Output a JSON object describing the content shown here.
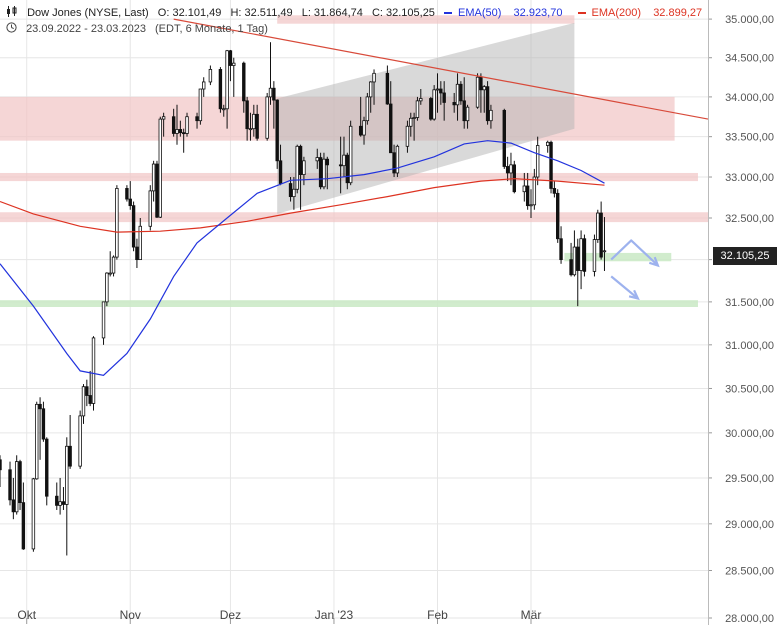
{
  "header": {
    "instrument": "Dow Jones (NYSE, Last)",
    "open": "O: 32.101,49",
    "high": "H: 32.511,49",
    "low": "L: 31.864,74",
    "close": "C: 32.105,25",
    "date_range": "23.09.2022 - 23.03.2023",
    "meta": "(EDT, 6 Monate, 1 Tag)",
    "ema50_label": "EMA(50)",
    "ema50_value": "32.923,70",
    "ema200_label": "EMA(200)",
    "ema200_value": "32.899,27"
  },
  "last_price_label": "32.105,25",
  "colors": {
    "ema50": "#2233dd",
    "ema200": "#dd3322",
    "trendline": "#d84a3a",
    "resistance_zone": "#f1c4c4",
    "support_zone": "#c9e9c4",
    "channel": "#b4b4b4",
    "arrow": "#9db2ee",
    "candle": "#111111"
  },
  "icons": [
    "candlestick-icon",
    "clock-icon"
  ],
  "chart_data": {
    "type": "candlestick",
    "y_scale": "log",
    "ylim": [
      28000,
      35250
    ],
    "y_ticks": [
      "35.000,00",
      "34.500,00",
      "34.000,00",
      "33.500,00",
      "33.000,00",
      "32.500,00",
      "32.000,00",
      "31.500,00",
      "31.000,00",
      "30.500,00",
      "30.000,00",
      "29.500,00",
      "29.000,00",
      "28.500,00",
      "28.000,00"
    ],
    "y_tick_values": [
      35000,
      34500,
      34000,
      33500,
      33000,
      32500,
      32000,
      31500,
      31000,
      30500,
      30000,
      29500,
      29000,
      28500,
      28000
    ],
    "x_labels": [
      "Okt",
      "Nov",
      "Dez",
      "Jan '23",
      "Feb",
      "Mär"
    ],
    "x_label_dates": [
      "2022-10-01",
      "2022-11-01",
      "2022-12-01",
      "2023-01-01",
      "2023-02-01",
      "2023-03-01"
    ],
    "x_range": [
      "2022-09-23",
      "2023-04-23"
    ],
    "grid": true,
    "candles": [
      [
        "2022-09-23",
        29700,
        29750,
        29400,
        29590
      ],
      [
        "2022-09-26",
        29590,
        29680,
        29200,
        29260
      ],
      [
        "2022-09-27",
        29260,
        29500,
        29050,
        29130
      ],
      [
        "2022-09-28",
        29130,
        29750,
        29100,
        29680
      ],
      [
        "2022-09-29",
        29680,
        29700,
        29150,
        29230
      ],
      [
        "2022-09-30",
        29230,
        29450,
        28720,
        28730
      ],
      [
        "2022-10-03",
        28730,
        29500,
        28700,
        29490
      ],
      [
        "2022-10-04",
        29490,
        30350,
        29480,
        30320
      ],
      [
        "2022-10-05",
        30320,
        30400,
        29700,
        30270
      ],
      [
        "2022-10-06",
        30270,
        30350,
        29900,
        29930
      ],
      [
        "2022-10-07",
        29930,
        29950,
        29200,
        29300
      ],
      [
        "2022-10-10",
        29300,
        29450,
        29150,
        29200
      ],
      [
        "2022-10-11",
        29200,
        29500,
        29100,
        29240
      ],
      [
        "2022-10-12",
        29240,
        29400,
        29150,
        29210
      ],
      [
        "2022-10-13",
        29210,
        29950,
        28660,
        29850
      ],
      [
        "2022-10-14",
        29850,
        30200,
        29600,
        29630
      ],
      [
        "2022-10-17",
        29630,
        30250,
        29600,
        30190
      ],
      [
        "2022-10-18",
        30190,
        30550,
        30100,
        30520
      ],
      [
        "2022-10-19",
        30520,
        30600,
        30300,
        30420
      ],
      [
        "2022-10-20",
        30420,
        30700,
        30300,
        30330
      ],
      [
        "2022-10-21",
        30330,
        31100,
        30250,
        31080
      ],
      [
        "2022-10-24",
        31080,
        31500,
        31000,
        31500
      ],
      [
        "2022-10-25",
        31500,
        31850,
        31450,
        31840
      ],
      [
        "2022-10-26",
        31840,
        32100,
        31800,
        31840
      ],
      [
        "2022-10-27",
        31840,
        32050,
        31800,
        32030
      ],
      [
        "2022-10-28",
        32030,
        32900,
        32000,
        32860
      ],
      [
        "2022-10-31",
        32860,
        32900,
        32700,
        32730
      ],
      [
        "2022-11-01",
        32730,
        32950,
        32600,
        32650
      ],
      [
        "2022-11-02",
        32650,
        32700,
        32100,
        32150
      ],
      [
        "2022-11-03",
        32150,
        32250,
        31900,
        32000
      ],
      [
        "2022-11-04",
        32000,
        32500,
        32000,
        32400
      ],
      [
        "2022-11-07",
        32400,
        32900,
        32350,
        32830
      ],
      [
        "2022-11-08",
        32830,
        33200,
        32700,
        33160
      ],
      [
        "2022-11-09",
        33160,
        33200,
        32500,
        32510
      ],
      [
        "2022-11-10",
        32510,
        33750,
        32500,
        33720
      ],
      [
        "2022-11-11",
        33720,
        33800,
        33500,
        33750
      ],
      [
        "2022-11-14",
        33750,
        33850,
        33500,
        33540
      ],
      [
        "2022-11-15",
        33540,
        33900,
        33400,
        33590
      ],
      [
        "2022-11-16",
        33590,
        33700,
        33500,
        33550
      ],
      [
        "2022-11-17",
        33550,
        33600,
        33300,
        33540
      ],
      [
        "2022-11-18",
        33540,
        33800,
        33500,
        33750
      ],
      [
        "2022-11-21",
        33750,
        33800,
        33600,
        33700
      ],
      [
        "2022-11-22",
        33700,
        34100,
        33650,
        34100
      ],
      [
        "2022-11-23",
        34100,
        34250,
        34000,
        34190
      ],
      [
        "2022-11-25",
        34190,
        34400,
        34150,
        34350
      ],
      [
        "2022-11-28",
        34350,
        34380,
        33800,
        33850
      ],
      [
        "2022-11-29",
        33850,
        33900,
        33750,
        33850
      ],
      [
        "2022-11-30",
        33850,
        34600,
        33600,
        34590
      ],
      [
        "2022-12-01",
        34590,
        34600,
        34200,
        34400
      ],
      [
        "2022-12-02",
        34400,
        34500,
        34000,
        34430
      ],
      [
        "2022-12-05",
        34430,
        34450,
        33800,
        33950
      ],
      [
        "2022-12-06",
        33950,
        34000,
        33450,
        33600
      ],
      [
        "2022-12-07",
        33600,
        33800,
        33450,
        33600
      ],
      [
        "2022-12-08",
        33600,
        33900,
        33500,
        33780
      ],
      [
        "2022-12-09",
        33780,
        33900,
        33450,
        33480
      ],
      [
        "2022-12-12",
        33480,
        34050,
        33450,
        34000
      ],
      [
        "2022-12-13",
        34000,
        34700,
        33900,
        34110
      ],
      [
        "2022-12-14",
        34110,
        34200,
        33600,
        33960
      ],
      [
        "2022-12-15",
        33960,
        33970,
        33100,
        33200
      ],
      [
        "2022-12-16",
        33200,
        33400,
        32900,
        32920
      ],
      [
        "2022-12-19",
        32920,
        33000,
        32700,
        32760
      ],
      [
        "2022-12-20",
        32760,
        33000,
        32600,
        32850
      ],
      [
        "2022-12-21",
        32850,
        33400,
        32800,
        33380
      ],
      [
        "2022-12-22",
        33380,
        33400,
        32600,
        33030
      ],
      [
        "2022-12-23",
        33030,
        33250,
        32900,
        33200
      ],
      [
        "2022-12-27",
        33200,
        33350,
        33100,
        33240
      ],
      [
        "2022-12-28",
        33240,
        33300,
        32850,
        32880
      ],
      [
        "2022-12-29",
        32880,
        33300,
        32850,
        33220
      ],
      [
        "2022-12-30",
        33220,
        33250,
        32850,
        33150
      ],
      [
        "2023-01-03",
        33150,
        33500,
        32800,
        33140
      ],
      [
        "2023-01-04",
        33140,
        33500,
        33000,
        33270
      ],
      [
        "2023-01-05",
        33270,
        33300,
        32850,
        32930
      ],
      [
        "2023-01-06",
        32930,
        33700,
        32900,
        33630
      ],
      [
        "2023-01-09",
        33630,
        34000,
        33500,
        33520
      ],
      [
        "2023-01-10",
        33520,
        33750,
        33400,
        33700
      ],
      [
        "2023-01-11",
        33700,
        34050,
        33650,
        34000
      ],
      [
        "2023-01-12",
        34000,
        34200,
        33800,
        34190
      ],
      [
        "2023-01-13",
        34190,
        34350,
        33900,
        34300
      ],
      [
        "2023-01-17",
        34300,
        34400,
        33900,
        33910
      ],
      [
        "2023-01-18",
        33910,
        34200,
        33300,
        33300
      ],
      [
        "2023-01-19",
        33300,
        33400,
        33000,
        33050
      ],
      [
        "2023-01-20",
        33050,
        33400,
        33000,
        33380
      ],
      [
        "2023-01-23",
        33380,
        33700,
        33300,
        33630
      ],
      [
        "2023-01-24",
        33630,
        33800,
        33500,
        33730
      ],
      [
        "2023-01-25",
        33730,
        33800,
        33450,
        33740
      ],
      [
        "2023-01-26",
        33740,
        34000,
        33700,
        33950
      ],
      [
        "2023-01-27",
        33950,
        34100,
        33900,
        33980
      ],
      [
        "2023-01-30",
        33980,
        34000,
        33700,
        33720
      ],
      [
        "2023-01-31",
        33720,
        34150,
        33700,
        34090
      ],
      [
        "2023-02-01",
        34090,
        34300,
        33800,
        34100
      ],
      [
        "2023-02-02",
        34100,
        34200,
        33900,
        34050
      ],
      [
        "2023-02-03",
        34050,
        34200,
        33700,
        33930
      ],
      [
        "2023-02-06",
        33930,
        34050,
        33800,
        33900
      ],
      [
        "2023-02-07",
        33900,
        34300,
        33700,
        34160
      ],
      [
        "2023-02-08",
        34160,
        34200,
        33900,
        33950
      ],
      [
        "2023-02-09",
        33950,
        34250,
        33600,
        33700
      ],
      [
        "2023-02-10",
        33700,
        33900,
        33600,
        33870
      ],
      [
        "2023-02-13",
        33870,
        34300,
        33850,
        34250
      ],
      [
        "2023-02-14",
        34250,
        34300,
        33800,
        34090
      ],
      [
        "2023-02-15",
        34090,
        34150,
        33800,
        34130
      ],
      [
        "2023-02-16",
        34130,
        34200,
        33650,
        33700
      ],
      [
        "2023-02-17",
        33700,
        33900,
        33600,
        33830
      ],
      [
        "2023-02-21",
        33830,
        33850,
        33100,
        33130
      ],
      [
        "2023-02-22",
        33130,
        33250,
        32950,
        33050
      ],
      [
        "2023-02-23",
        33050,
        33300,
        32900,
        33150
      ],
      [
        "2023-02-24",
        33150,
        33200,
        32800,
        32820
      ],
      [
        "2023-02-27",
        32820,
        33050,
        32700,
        32890
      ],
      [
        "2023-02-28",
        32890,
        33050,
        32600,
        32650
      ],
      [
        "2023-03-01",
        32650,
        32850,
        32500,
        32660
      ],
      [
        "2023-03-02",
        32660,
        33100,
        32600,
        33000
      ],
      [
        "2023-03-03",
        33000,
        33500,
        32900,
        33390
      ],
      [
        "2023-03-06",
        33390,
        33450,
        33300,
        33430
      ],
      [
        "2023-03-07",
        33430,
        33450,
        32800,
        32860
      ],
      [
        "2023-03-08",
        32860,
        32950,
        32750,
        32800
      ],
      [
        "2023-03-09",
        32800,
        32850,
        32200,
        32250
      ],
      [
        "2023-03-10",
        32250,
        32400,
        31950,
        32000
      ],
      [
        "2023-03-13",
        32000,
        32200,
        31800,
        31820
      ],
      [
        "2023-03-14",
        31820,
        32350,
        31800,
        32150
      ],
      [
        "2023-03-15",
        32150,
        32250,
        31450,
        31870
      ],
      [
        "2023-03-16",
        31870,
        32350,
        31650,
        32250
      ],
      [
        "2023-03-17",
        32250,
        32300,
        31800,
        31860
      ],
      [
        "2023-03-20",
        31860,
        32300,
        31800,
        32240
      ],
      [
        "2023-03-21",
        32240,
        32600,
        32200,
        32560
      ],
      [
        "2023-03-22",
        32560,
        32700,
        32000,
        32030
      ],
      [
        "2023-03-23",
        32101.49,
        32511.49,
        31864.74,
        32105.25
      ]
    ],
    "ema50": [
      [
        "2022-09-23",
        31950
      ],
      [
        "2022-10-03",
        31450
      ],
      [
        "2022-10-13",
        30900
      ],
      [
        "2022-10-17",
        30700
      ],
      [
        "2022-10-24",
        30650
      ],
      [
        "2022-10-31",
        30900
      ],
      [
        "2022-11-07",
        31300
      ],
      [
        "2022-11-14",
        31800
      ],
      [
        "2022-11-21",
        32200
      ],
      [
        "2022-11-30",
        32500
      ],
      [
        "2022-12-09",
        32800
      ],
      [
        "2022-12-19",
        32960
      ],
      [
        "2022-12-30",
        32980
      ],
      [
        "2023-01-10",
        33030
      ],
      [
        "2023-01-20",
        33110
      ],
      [
        "2023-01-31",
        33250
      ],
      [
        "2023-02-09",
        33410
      ],
      [
        "2023-02-16",
        33450
      ],
      [
        "2023-02-23",
        33420
      ],
      [
        "2023-03-02",
        33300
      ],
      [
        "2023-03-09",
        33200
      ],
      [
        "2023-03-16",
        33080
      ],
      [
        "2023-03-23",
        32923.7
      ]
    ],
    "ema200": [
      [
        "2022-09-23",
        32700
      ],
      [
        "2022-10-03",
        32550
      ],
      [
        "2022-10-17",
        32400
      ],
      [
        "2022-10-28",
        32330
      ],
      [
        "2022-11-10",
        32340
      ],
      [
        "2022-11-22",
        32380
      ],
      [
        "2022-12-06",
        32460
      ],
      [
        "2022-12-19",
        32560
      ],
      [
        "2023-01-03",
        32660
      ],
      [
        "2023-01-17",
        32760
      ],
      [
        "2023-01-31",
        32870
      ],
      [
        "2023-02-14",
        32950
      ],
      [
        "2023-02-24",
        32980
      ],
      [
        "2023-03-09",
        32950
      ],
      [
        "2023-03-23",
        32899.27
      ]
    ],
    "annotations": {
      "resistance_zones": [
        {
          "start": "2022-09-23",
          "end": "2023-04-13",
          "low": 33450,
          "high": 34000
        },
        {
          "start": "2022-09-23",
          "end": "2023-04-20",
          "low": 32950,
          "high": 33050
        },
        {
          "start": "2022-09-23",
          "end": "2023-04-23",
          "low": 32450,
          "high": 32570
        },
        {
          "start": "2022-12-15",
          "end": "2023-03-14",
          "low": 34940,
          "high": 35050
        }
      ],
      "support_zones": [
        {
          "start": "2022-09-23",
          "end": "2023-04-20",
          "low": 31440,
          "high": 31520
        },
        {
          "start": "2023-03-11",
          "end": "2023-04-12",
          "low": 31980,
          "high": 32080
        }
      ],
      "trendline": {
        "from": [
          "2022-11-14",
          35000
        ],
        "to": [
          "2023-04-23",
          33720
        ]
      },
      "channel": [
        [
          "2022-12-15",
          33980
        ],
        [
          "2023-03-14",
          34950
        ],
        [
          "2023-03-14",
          33600
        ],
        [
          "2022-12-15",
          32550
        ]
      ],
      "forecast_arrows": [
        [
          [
            "2023-03-25",
            32000
          ],
          [
            "2023-03-31",
            32230
          ],
          [
            "2023-04-08",
            31930
          ]
        ],
        [
          [
            "2023-03-25",
            31800
          ],
          [
            "2023-04-02",
            31540
          ]
        ]
      ]
    }
  }
}
